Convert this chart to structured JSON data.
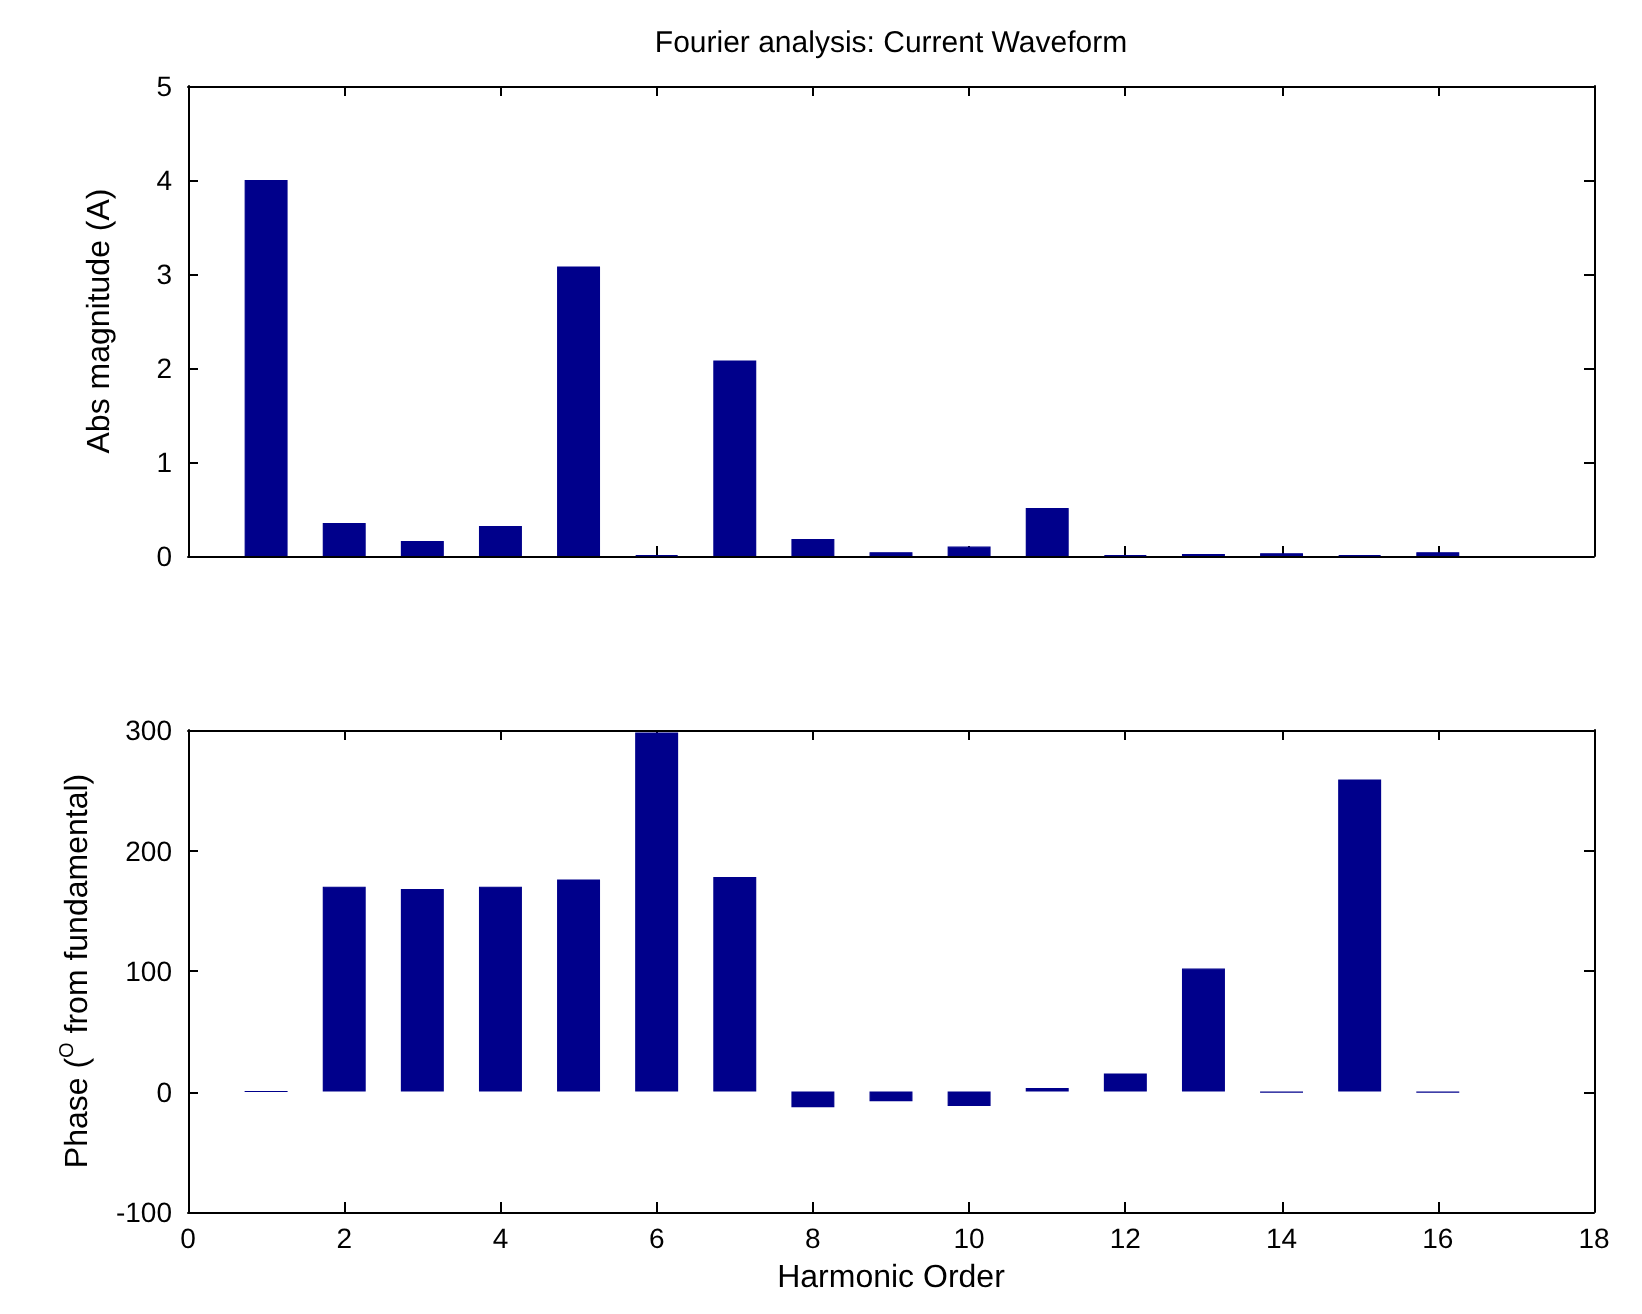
{
  "chart_data": [
    {
      "type": "bar",
      "title": "Fourier analysis: Current Waveform",
      "ylabel": "Abs magnitude (A)",
      "x": [
        1,
        2,
        3,
        4,
        5,
        6,
        7,
        8,
        9,
        10,
        11,
        12,
        13,
        14,
        15,
        16
      ],
      "values": [
        4.0,
        0.35,
        0.16,
        0.32,
        3.08,
        0.01,
        2.08,
        0.18,
        0.04,
        0.1,
        0.51,
        0.01,
        0.02,
        0.03,
        0.01,
        0.04
      ],
      "color": "#00008b",
      "xlim": [
        0,
        18
      ],
      "xticks": [
        0,
        2,
        4,
        6,
        8,
        10,
        12,
        14,
        16,
        18
      ],
      "ylim": [
        0,
        5
      ],
      "yticks": [
        0,
        1,
        2,
        3,
        4,
        5
      ],
      "tick_labels": "y",
      "grid": false
    },
    {
      "type": "bar",
      "xlabel": "Harmonic Order",
      "ylabel": "Phase ($^{O}$ from fundamental)",
      "x": [
        1,
        2,
        3,
        4,
        5,
        6,
        7,
        8,
        9,
        10,
        11,
        12,
        13,
        14,
        15,
        16
      ],
      "values": [
        0,
        170,
        168,
        170,
        176,
        298,
        178,
        -13,
        -8,
        -12,
        3,
        15,
        102,
        -1,
        259,
        -1
      ],
      "color": "#00008b",
      "xlim": [
        0,
        18
      ],
      "xticks": [
        0,
        2,
        4,
        6,
        8,
        10,
        12,
        14,
        16,
        18
      ],
      "ylim": [
        -100,
        300
      ],
      "yticks": [
        -100,
        0,
        100,
        200,
        300
      ],
      "grid": false
    }
  ]
}
